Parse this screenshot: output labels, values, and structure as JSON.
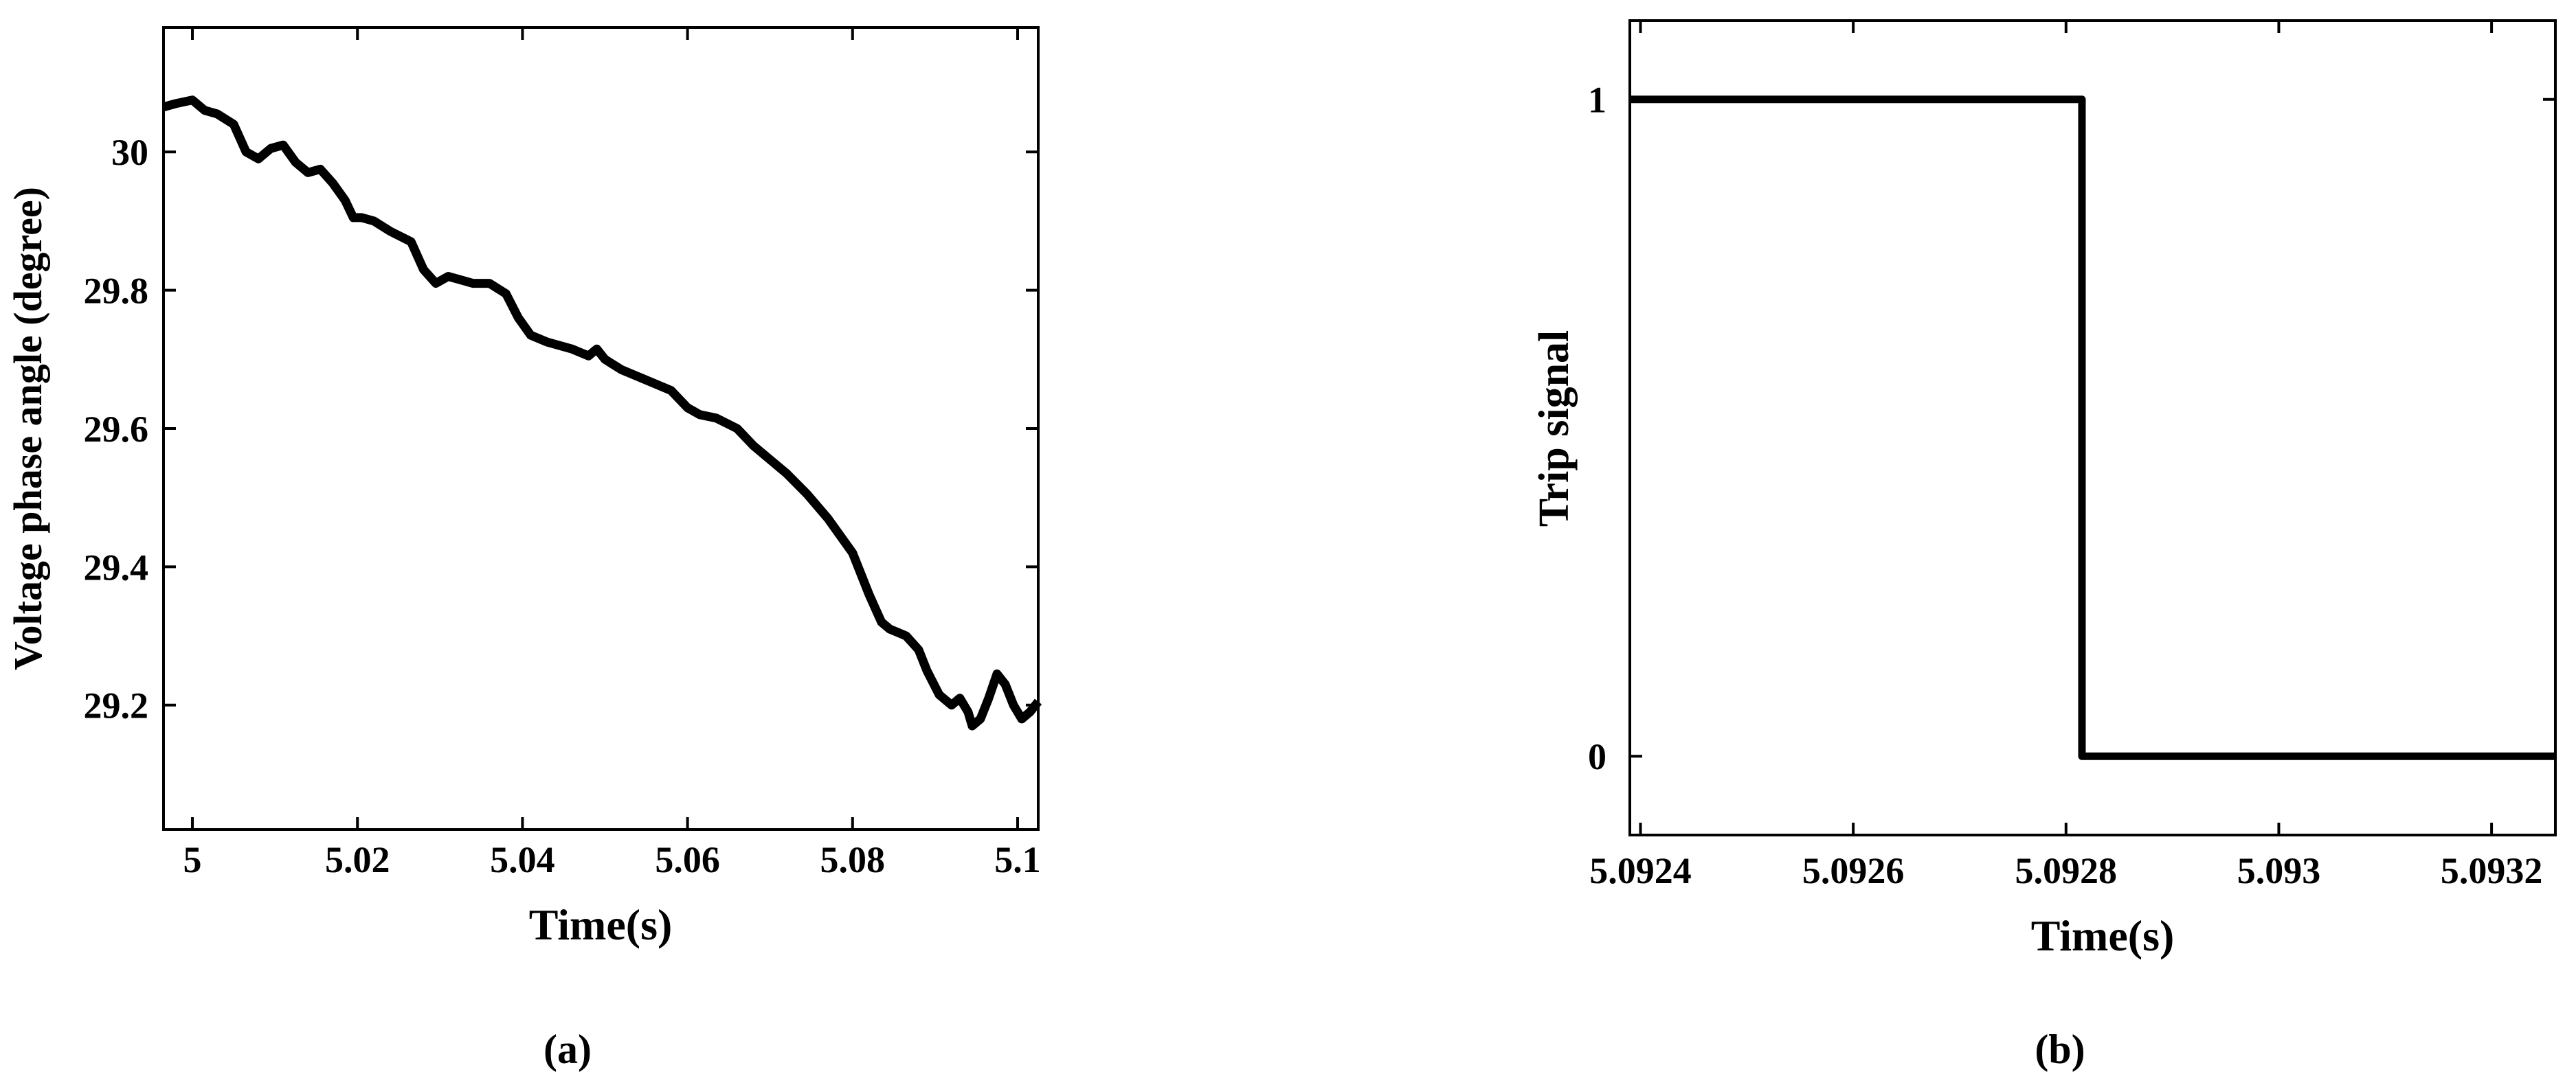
{
  "chart_data": [
    {
      "type": "line",
      "panel_label": "(a)",
      "title": "",
      "xlabel": "Time(s)",
      "ylabel": "Voltage phase angle (degree)",
      "xlim": [
        4.9965,
        5.1025
      ],
      "ylim": [
        29.02,
        30.18
      ],
      "xticks": [
        5,
        5.02,
        5.04,
        5.06,
        5.08,
        5.1
      ],
      "xtick_labels": [
        "5",
        "5.02",
        "5.04",
        "5.06",
        "5.08",
        "5.1"
      ],
      "yticks": [
        29.2,
        29.4,
        29.6,
        29.8,
        30
      ],
      "ytick_labels": [
        "29.2",
        "29.4",
        "29.6",
        "29.8",
        "30"
      ],
      "grid": false,
      "legend": false,
      "line_color": "#000000",
      "series": [
        {
          "x": [
            4.9965,
            4.998,
            5.0,
            5.0015,
            5.003,
            5.005,
            5.0065,
            5.008,
            5.0095,
            5.011,
            5.0125,
            5.014,
            5.0155,
            5.017,
            5.0185,
            5.0195,
            5.0205,
            5.022,
            5.024,
            5.0265,
            5.028,
            5.0295,
            5.031,
            5.0325,
            5.034,
            5.036,
            5.038,
            5.0395,
            5.041,
            5.043,
            5.046,
            5.048,
            5.049,
            5.05,
            5.052,
            5.055,
            5.058,
            5.06,
            5.0615,
            5.0635,
            5.066,
            5.068,
            5.07,
            5.072,
            5.0745,
            5.077,
            5.08,
            5.082,
            5.0835,
            5.0845,
            5.0855,
            5.0865,
            5.088,
            5.089,
            5.0905,
            5.092,
            5.093,
            5.094,
            5.0945,
            5.0955,
            5.0965,
            5.0975,
            5.0985,
            5.0995,
            5.1005,
            5.1015,
            5.1025
          ],
          "y": [
            30.065,
            30.07,
            30.075,
            30.06,
            30.055,
            30.04,
            30.0,
            29.99,
            30.005,
            30.01,
            29.985,
            29.97,
            29.975,
            29.955,
            29.93,
            29.905,
            29.905,
            29.9,
            29.885,
            29.87,
            29.83,
            29.81,
            29.82,
            29.815,
            29.81,
            29.81,
            29.795,
            29.76,
            29.735,
            29.725,
            29.715,
            29.705,
            29.715,
            29.7,
            29.685,
            29.67,
            29.655,
            29.63,
            29.62,
            29.615,
            29.6,
            29.575,
            29.555,
            29.535,
            29.505,
            29.47,
            29.42,
            29.36,
            29.32,
            29.31,
            29.305,
            29.3,
            29.28,
            29.25,
            29.215,
            29.2,
            29.21,
            29.19,
            29.17,
            29.18,
            29.21,
            29.245,
            29.23,
            29.2,
            29.18,
            29.19,
            29.205
          ]
        }
      ]
    },
    {
      "type": "line",
      "panel_label": "(b)",
      "title": "",
      "xlabel": "Time(s)",
      "ylabel": "Trip signal",
      "xlim": [
        5.09239,
        5.09326
      ],
      "ylim": [
        -0.12,
        1.12
      ],
      "xticks": [
        5.0924,
        5.0926,
        5.0928,
        5.093,
        5.0932
      ],
      "xtick_labels": [
        "5.0924",
        "5.0926",
        "5.0928",
        "5.093",
        "5.0932"
      ],
      "yticks": [
        0,
        1
      ],
      "ytick_labels": [
        "0",
        "1"
      ],
      "grid": false,
      "legend": false,
      "line_color": "#000000",
      "series": [
        {
          "x": [
            5.09239,
            5.092815,
            5.092815,
            5.09326
          ],
          "y": [
            1,
            1,
            0,
            0
          ]
        }
      ]
    }
  ]
}
